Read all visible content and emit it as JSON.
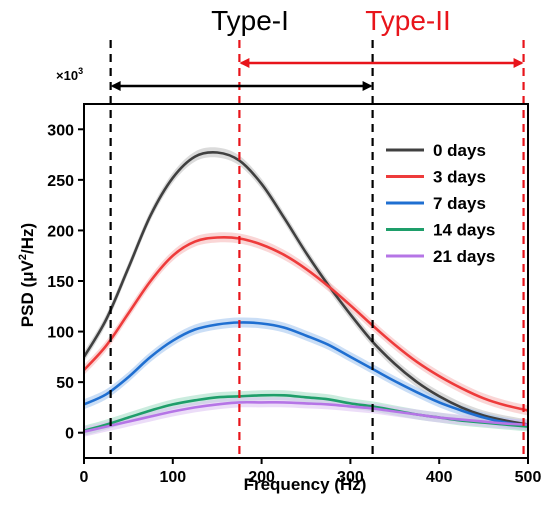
{
  "chart_data": {
    "type": "line",
    "xlabel": "Frequency (Hz)",
    "ylabel_main": "PSD (μV",
    "ylabel_sup": "2",
    "ylabel_tail": "/Hz)",
    "y_multiplier": "×10",
    "y_multiplier_exp": "3",
    "xlim": [
      0,
      500
    ],
    "ylim": [
      -25,
      325
    ],
    "x_ticks": [
      "0",
      "100",
      "200",
      "300",
      "400",
      "500"
    ],
    "y_ticks": [
      "0",
      "50",
      "100",
      "150",
      "200",
      "250",
      "300"
    ],
    "legend_position": "top-right",
    "x": [
      0,
      25,
      50,
      75,
      100,
      125,
      150,
      175,
      200,
      225,
      250,
      275,
      300,
      325,
      350,
      375,
      400,
      425,
      450,
      475,
      500
    ],
    "series": [
      {
        "name": "0 days",
        "color": "#404040",
        "band_color": "#bdbdbd",
        "values": [
          75,
          112,
          163,
          215,
          252,
          273,
          277,
          269,
          246,
          213,
          178,
          146,
          117,
          90,
          68,
          50,
          36,
          25,
          17,
          12,
          8
        ]
      },
      {
        "name": "3 days",
        "color": "#ee3b3b",
        "band_color": "#f5b5b5",
        "values": [
          62,
          86,
          118,
          150,
          175,
          189,
          193,
          192,
          186,
          176,
          162,
          145,
          126,
          106,
          87,
          70,
          56,
          44,
          34,
          27,
          22
        ]
      },
      {
        "name": "7 days",
        "color": "#1f6fd1",
        "band_color": "#9ec3ee",
        "values": [
          28,
          38,
          55,
          75,
          91,
          102,
          107,
          109,
          108,
          104,
          96,
          87,
          75,
          63,
          51,
          40,
          30,
          22,
          15,
          10,
          7
        ]
      },
      {
        "name": "14 days",
        "color": "#1e9e6a",
        "band_color": "#9fdcc2",
        "values": [
          2,
          8,
          15,
          22,
          28,
          32,
          35,
          36,
          37,
          37,
          35,
          33,
          29,
          26,
          22,
          18,
          15,
          12,
          10,
          8,
          6
        ]
      },
      {
        "name": "21 days",
        "color": "#b575e6",
        "band_color": "#ddc1f3",
        "values": [
          1,
          6,
          11,
          16,
          21,
          25,
          28,
          30,
          30,
          30,
          29,
          28,
          26,
          24,
          21,
          18,
          15,
          13,
          11,
          9,
          8
        ]
      }
    ],
    "regions": [
      {
        "name": "Type-I",
        "color": "#000000",
        "x_start": 30,
        "x_end": 325
      },
      {
        "name": "Type-II",
        "color": "#e8141b",
        "x_start": 175,
        "x_end": 495
      }
    ]
  }
}
